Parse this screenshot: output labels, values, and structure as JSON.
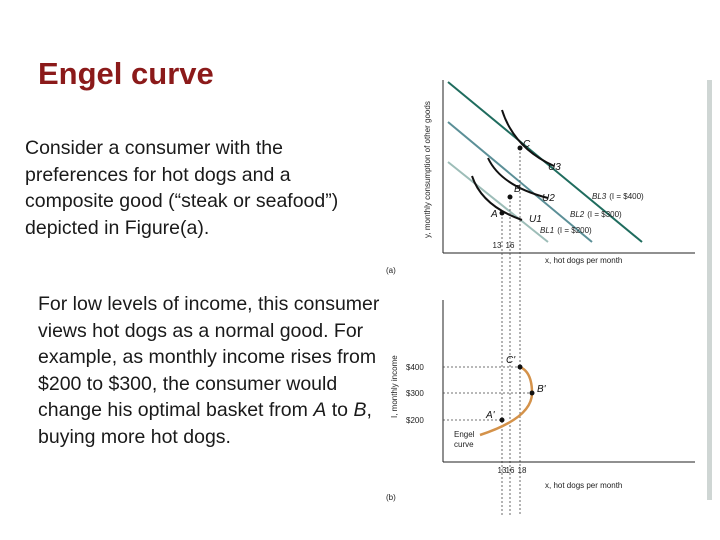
{
  "slide": {
    "title": "Engel curve",
    "paragraph1": "Consider a consumer with the preferences for hot dogs and a composite good (“steak or seafood”) depicted in Figure(a).",
    "paragraph2_parts": [
      {
        "text": "For low levels of income, this consumer views hot dogs as a normal good. For example, as monthly income rises from $200 to $300, the consumer would change his optimal basket from ",
        "italic": false
      },
      {
        "text": "A",
        "italic": true
      },
      {
        "text": " to ",
        "italic": false
      },
      {
        "text": "B",
        "italic": true
      },
      {
        "text": ", buying more hot dogs.",
        "italic": false
      }
    ]
  },
  "figure": {
    "panel_a": {
      "panel_label": "(a)",
      "y_axis_label": "y, monthly consumption of other goods",
      "x_axis_label": "x, hot dogs per month",
      "tick_labels": [
        "13",
        "16"
      ],
      "points": [
        "A",
        "B",
        "C"
      ],
      "indifference_curves": [
        "U1",
        "U2",
        "U3"
      ],
      "budget_lines": [
        {
          "name": "BL1",
          "income": "(I = $200)"
        },
        {
          "name": "BL2",
          "income": "(I = $300)"
        },
        {
          "name": "BL3",
          "income": "(I = $400)"
        }
      ],
      "colors": {
        "BL1": "#9dbdb8",
        "BL2": "#5b8f97",
        "BL3": "#1f6c5e",
        "curves": "#111111"
      }
    },
    "panel_b": {
      "panel_label": "(b)",
      "y_axis_label": "I, monthly income",
      "x_axis_label": "x, hot dogs per month",
      "income_ticks": [
        "$400",
        "$300",
        "$200"
      ],
      "tick_labels": [
        "13",
        "16",
        "18"
      ],
      "points": [
        "A'",
        "B'",
        "C'"
      ],
      "curve_label": [
        "Engel",
        "curve"
      ],
      "colors": {
        "engel_curve": "#d4924a"
      }
    }
  }
}
